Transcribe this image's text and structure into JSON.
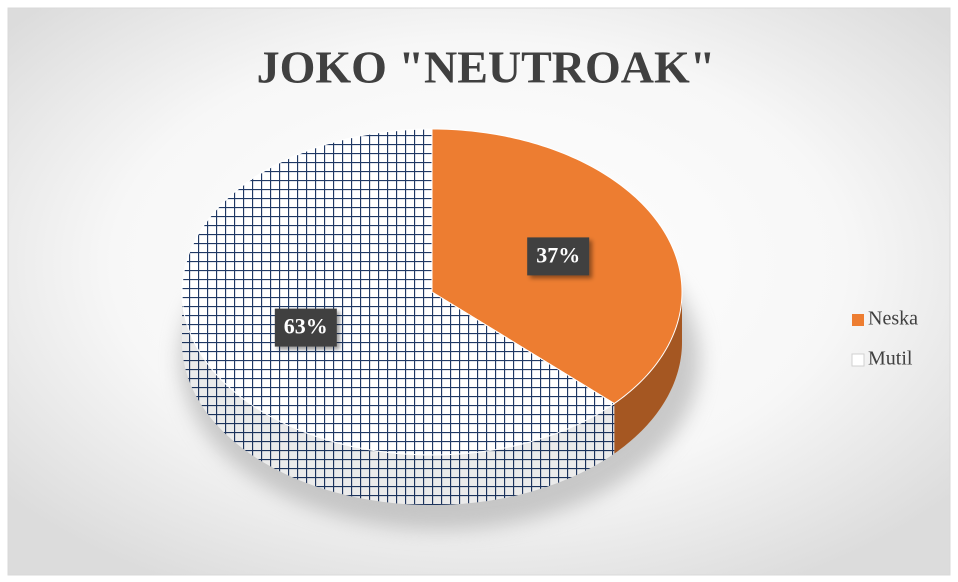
{
  "chart_data": {
    "type": "pie",
    "title": "JOKO \"NEUTROAK\"",
    "categories": [
      "Neska",
      "Mutil"
    ],
    "values": [
      37,
      63
    ],
    "value_labels": [
      "37%",
      "63%"
    ],
    "colors": [
      "#ED7D31",
      "#FFFFFF"
    ],
    "patterns": [
      "solid",
      "grid"
    ],
    "pattern_color": "#1F3864",
    "legend": "right"
  }
}
